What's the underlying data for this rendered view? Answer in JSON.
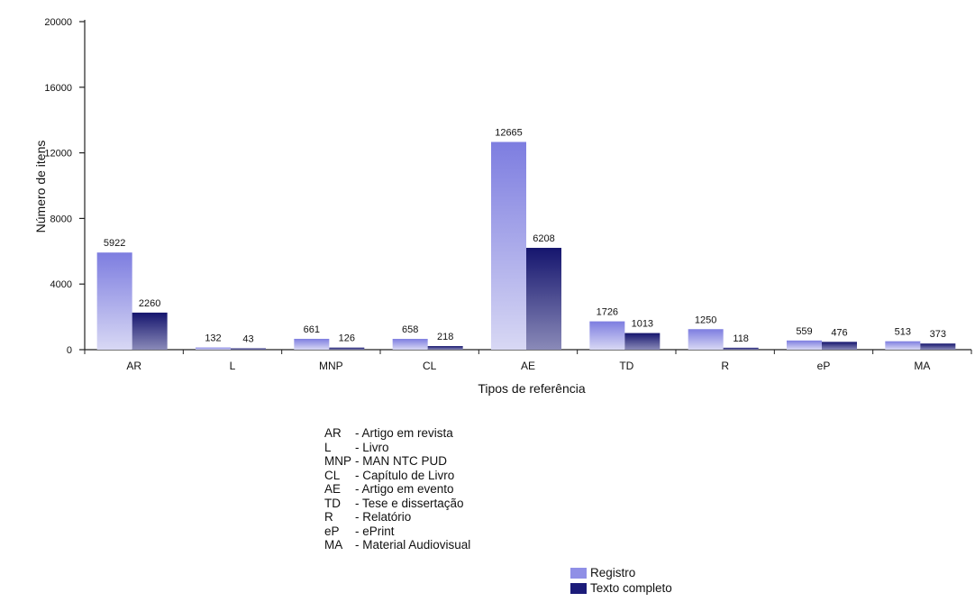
{
  "chart_data": {
    "type": "bar",
    "xlabel": "Tipos de referência",
    "ylabel": "Número de itens",
    "ylim": [
      0,
      20000
    ],
    "yticks": [
      "0",
      "4000",
      "8000",
      "12000",
      "16000",
      "20000"
    ],
    "categories": [
      "AR",
      "L",
      "MNP",
      "CL",
      "AE",
      "TD",
      "R",
      "eP",
      "MA"
    ],
    "series": [
      {
        "name": "Registro",
        "color": "#8f8fe6",
        "values": [
          5922,
          132,
          661,
          658,
          12665,
          1726,
          1250,
          559,
          513
        ]
      },
      {
        "name": "Texto completo",
        "color": "#1c1c7a",
        "values": [
          2260,
          43,
          126,
          218,
          6208,
          1013,
          118,
          476,
          373
        ]
      }
    ],
    "grid": false,
    "legend_position": "bottom"
  },
  "abbreviations": [
    {
      "code": "AR",
      "desc": "- Artigo em revista"
    },
    {
      "code": "L",
      "desc": "- Livro"
    },
    {
      "code": "MNP",
      "desc": "- MAN NTC PUD"
    },
    {
      "code": "CL",
      "desc": "- Capítulo de Livro"
    },
    {
      "code": "AE",
      "desc": "- Artigo em evento"
    },
    {
      "code": "TD",
      "desc": "- Tese e dissertação"
    },
    {
      "code": "R",
      "desc": "- Relatório"
    },
    {
      "code": "eP",
      "desc": "- ePrint"
    },
    {
      "code": "MA",
      "desc": "- Material Audiovisual"
    }
  ]
}
